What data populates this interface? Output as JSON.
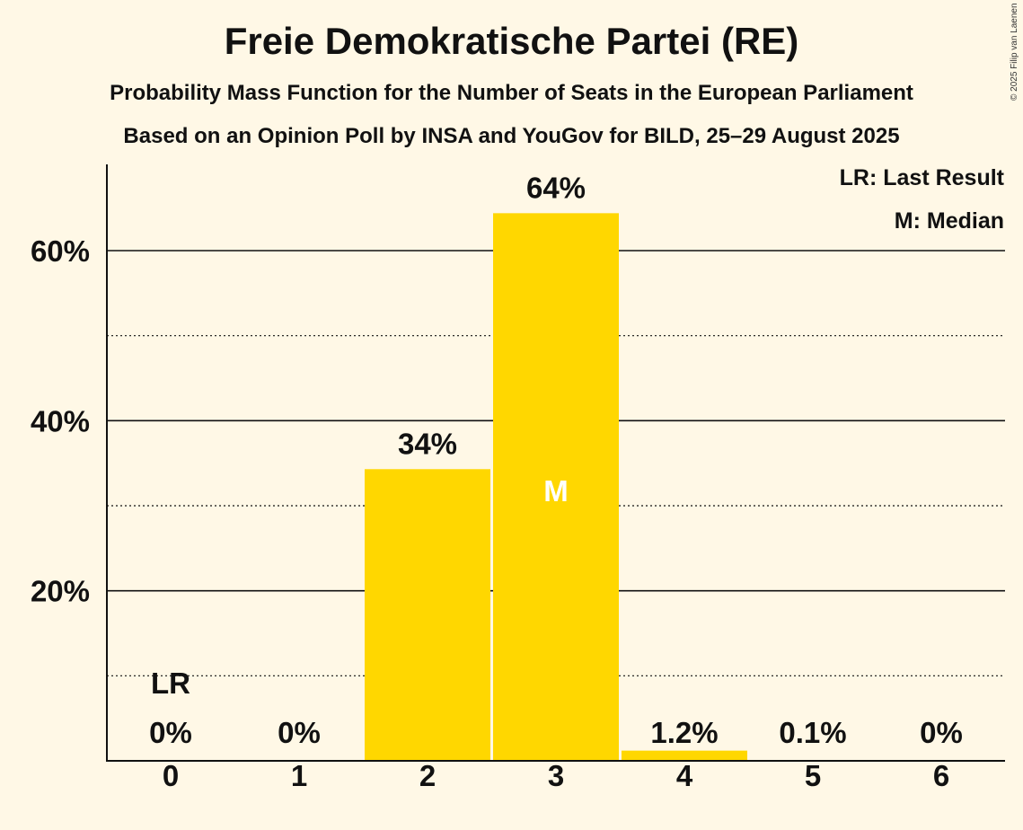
{
  "chart_data": {
    "type": "bar",
    "title": "Freie Demokratische Partei (RE)",
    "subtitle": "Probability Mass Function for the Number of Seats in the European Parliament",
    "source": "Based on an Opinion Poll by INSA and YouGov for BILD, 25–29 August 2025",
    "copyright": "© 2025 Filip van Laenen",
    "categories": [
      "0",
      "1",
      "2",
      "3",
      "4",
      "5",
      "6"
    ],
    "values": [
      0,
      0,
      34.3,
      64.4,
      1.2,
      0.1,
      0
    ],
    "labels": [
      "0%",
      "0%",
      "34%",
      "64%",
      "1.2%",
      "0.1%",
      "0%"
    ],
    "ylim": [
      0,
      70
    ],
    "yticks": [
      {
        "value": 20,
        "label": "20%"
      },
      {
        "value": 40,
        "label": "40%"
      },
      {
        "value": 60,
        "label": "60%"
      }
    ],
    "minor_gridlines": [
      10,
      30,
      50
    ],
    "last_result_index": 0,
    "last_result_label": "LR",
    "median_index": 3,
    "median_label": "M",
    "legend": {
      "last_result": "LR: Last Result",
      "median": "M: Median"
    },
    "colors": {
      "bar": "#ffd700",
      "background": "#fff8e6",
      "text": "#111111",
      "median_text": "#ffffff"
    }
  }
}
